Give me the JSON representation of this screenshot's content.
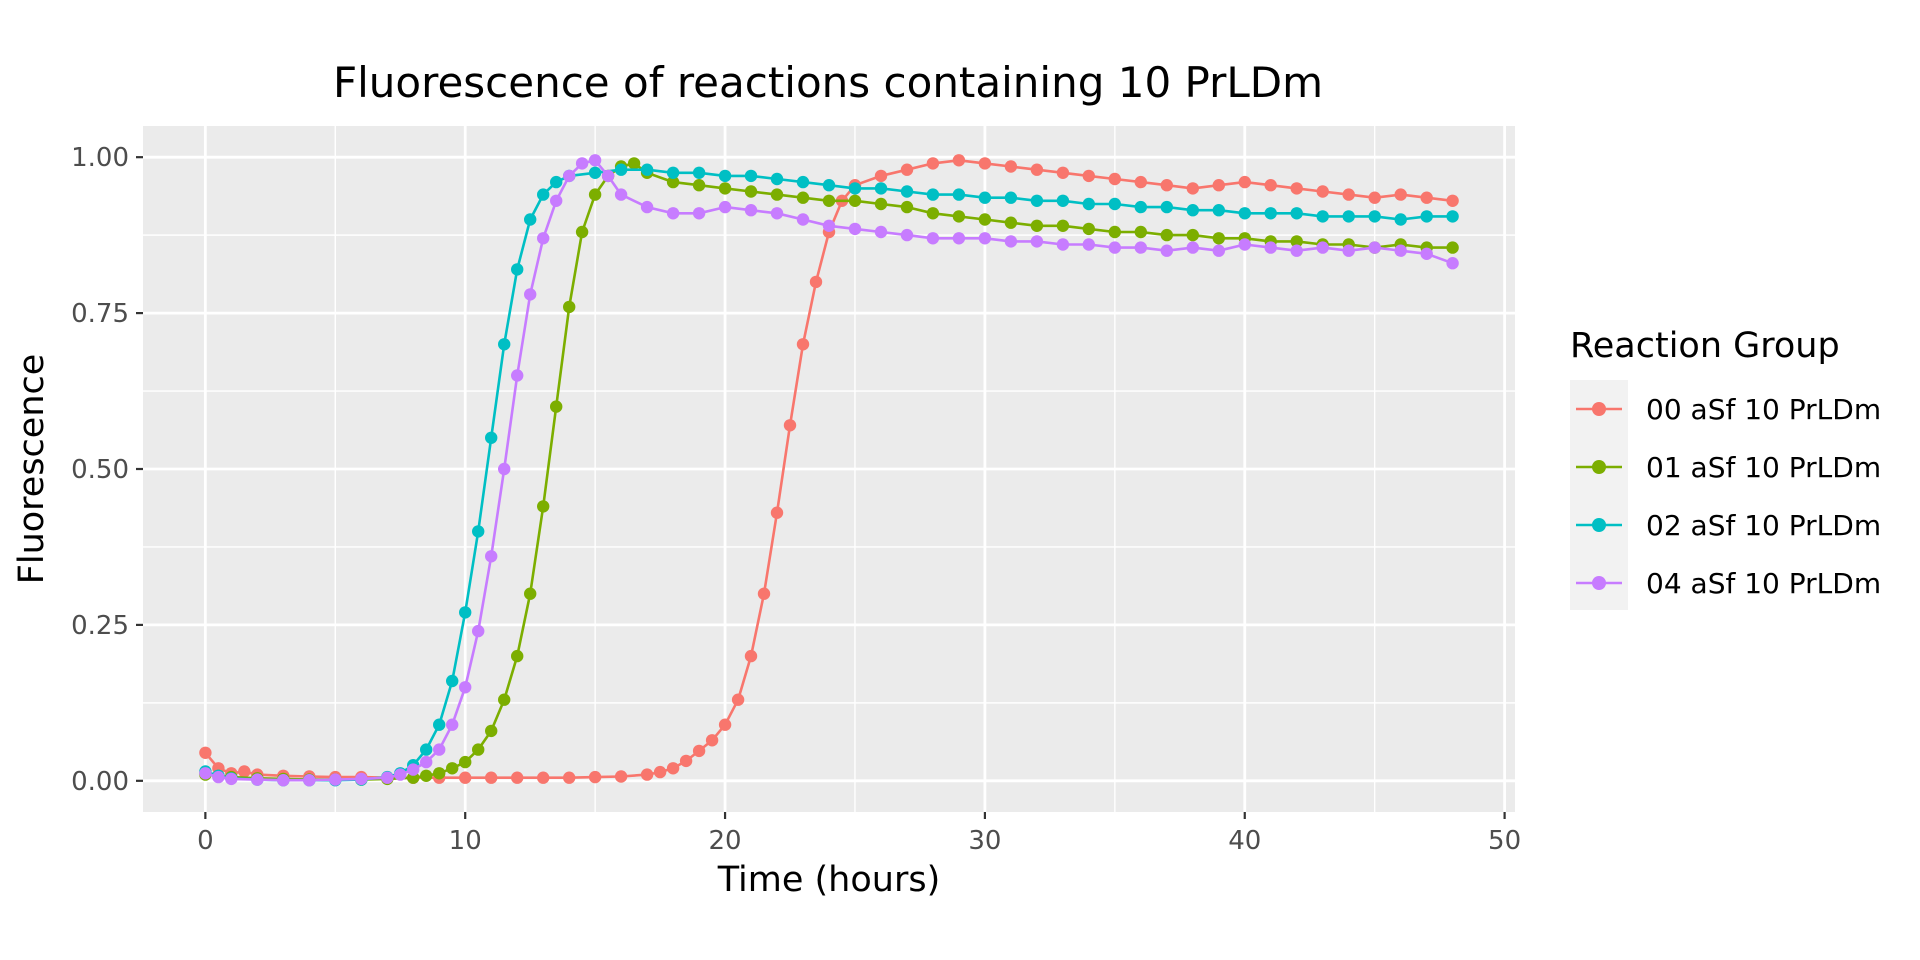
{
  "chart_data": {
    "type": "line",
    "title": "Fluorescence of reactions containing 10 PrLDm",
    "xlabel": "Time (hours)",
    "ylabel": "Fluorescence",
    "xlim": [
      -2.4,
      50.4
    ],
    "ylim": [
      -0.05,
      1.05
    ],
    "x_ticks": [
      0,
      10,
      20,
      30,
      40,
      50
    ],
    "x_tick_labels": [
      "0",
      "10",
      "20",
      "30",
      "40",
      "50"
    ],
    "y_ticks": [
      0,
      0.25,
      0.5,
      0.75,
      1.0
    ],
    "y_tick_labels": [
      "0.00",
      "0.25",
      "0.50",
      "0.75",
      "1.00"
    ],
    "grid": true,
    "markers": true,
    "legend": {
      "title": "Reaction Group",
      "position": "right"
    },
    "panel_background": "#EBEBEB",
    "grid_color": "#FFFFFF",
    "series": [
      {
        "name": "00 aSf 10 PrLDm",
        "color": "#F8766D",
        "x": [
          0,
          0.5,
          1,
          1.5,
          2,
          3,
          4,
          5,
          6,
          7,
          8,
          9,
          10,
          11,
          12,
          13,
          14,
          15,
          16,
          17,
          17.5,
          18,
          18.5,
          19,
          19.5,
          20,
          20.5,
          21,
          21.5,
          22,
          22.5,
          23,
          23.5,
          24,
          24.5,
          25,
          26,
          27,
          28,
          29,
          30,
          31,
          32,
          33,
          34,
          35,
          36,
          37,
          38,
          39,
          40,
          41,
          42,
          43,
          44,
          45,
          46,
          47,
          48
        ],
        "y": [
          0.045,
          0.02,
          0.012,
          0.015,
          0.01,
          0.008,
          0.007,
          0.006,
          0.006,
          0.005,
          0.005,
          0.005,
          0.005,
          0.005,
          0.005,
          0.005,
          0.005,
          0.006,
          0.007,
          0.01,
          0.014,
          0.02,
          0.032,
          0.048,
          0.065,
          0.09,
          0.13,
          0.2,
          0.3,
          0.43,
          0.57,
          0.7,
          0.8,
          0.88,
          0.93,
          0.955,
          0.97,
          0.98,
          0.99,
          0.995,
          0.99,
          0.985,
          0.98,
          0.975,
          0.97,
          0.965,
          0.96,
          0.955,
          0.95,
          0.955,
          0.96,
          0.955,
          0.95,
          0.945,
          0.94,
          0.935,
          0.94,
          0.935,
          0.93
        ]
      },
      {
        "name": "01 aSf 10 PrLDm",
        "color": "#7CAE00",
        "x": [
          0,
          0.5,
          1,
          2,
          3,
          4,
          5,
          6,
          7,
          8,
          8.5,
          9,
          9.5,
          10,
          10.5,
          11,
          11.5,
          12,
          12.5,
          13,
          13.5,
          14,
          14.5,
          15,
          15.5,
          16,
          16.5,
          17,
          18,
          19,
          20,
          21,
          22,
          23,
          24,
          25,
          26,
          27,
          28,
          29,
          30,
          31,
          32,
          33,
          34,
          35,
          36,
          37,
          38,
          39,
          40,
          41,
          42,
          43,
          44,
          45,
          46,
          47,
          48
        ],
        "y": [
          0.01,
          0.008,
          0.006,
          0.004,
          0.003,
          0.002,
          0.002,
          0.002,
          0.003,
          0.005,
          0.008,
          0.012,
          0.02,
          0.03,
          0.05,
          0.08,
          0.13,
          0.2,
          0.3,
          0.44,
          0.6,
          0.76,
          0.88,
          0.94,
          0.97,
          0.985,
          0.99,
          0.975,
          0.96,
          0.955,
          0.95,
          0.945,
          0.94,
          0.935,
          0.93,
          0.93,
          0.925,
          0.92,
          0.91,
          0.905,
          0.9,
          0.895,
          0.89,
          0.89,
          0.885,
          0.88,
          0.88,
          0.875,
          0.875,
          0.87,
          0.87,
          0.865,
          0.865,
          0.86,
          0.86,
          0.855,
          0.86,
          0.855,
          0.855
        ]
      },
      {
        "name": "02 aSf 10 PrLDm",
        "color": "#00BFC4",
        "x": [
          0,
          0.5,
          1,
          2,
          3,
          4,
          5,
          6,
          7,
          7.5,
          8,
          8.5,
          9,
          9.5,
          10,
          10.5,
          11,
          11.5,
          12,
          12.5,
          13,
          13.5,
          14,
          15,
          16,
          17,
          18,
          19,
          20,
          21,
          22,
          23,
          24,
          25,
          26,
          27,
          28,
          29,
          30,
          31,
          32,
          33,
          34,
          35,
          36,
          37,
          38,
          39,
          40,
          41,
          42,
          43,
          44,
          45,
          46,
          47,
          48
        ],
        "y": [
          0.015,
          0.008,
          0.004,
          0.002,
          0.001,
          0.001,
          0.001,
          0.002,
          0.006,
          0.012,
          0.025,
          0.05,
          0.09,
          0.16,
          0.27,
          0.4,
          0.55,
          0.7,
          0.82,
          0.9,
          0.94,
          0.96,
          0.97,
          0.975,
          0.98,
          0.98,
          0.975,
          0.975,
          0.97,
          0.97,
          0.965,
          0.96,
          0.955,
          0.95,
          0.95,
          0.945,
          0.94,
          0.94,
          0.935,
          0.935,
          0.93,
          0.93,
          0.925,
          0.925,
          0.92,
          0.92,
          0.915,
          0.915,
          0.91,
          0.91,
          0.91,
          0.905,
          0.905,
          0.905,
          0.9,
          0.905,
          0.905
        ]
      },
      {
        "name": "04 aSf 10 PrLDm",
        "color": "#C77CFF",
        "x": [
          0,
          0.5,
          1,
          2,
          3,
          4,
          5,
          6,
          7,
          7.5,
          8,
          8.5,
          9,
          9.5,
          10,
          10.5,
          11,
          11.5,
          12,
          12.5,
          13,
          13.5,
          14,
          14.5,
          15,
          15.5,
          16,
          17,
          18,
          19,
          20,
          21,
          22,
          23,
          24,
          25,
          26,
          27,
          28,
          29,
          30,
          31,
          32,
          33,
          34,
          35,
          36,
          37,
          38,
          39,
          40,
          41,
          42,
          43,
          44,
          45,
          46,
          47,
          48
        ],
        "y": [
          0.012,
          0.006,
          0.003,
          0.002,
          0.001,
          0.001,
          0.002,
          0.003,
          0.005,
          0.01,
          0.018,
          0.03,
          0.05,
          0.09,
          0.15,
          0.24,
          0.36,
          0.5,
          0.65,
          0.78,
          0.87,
          0.93,
          0.97,
          0.99,
          0.995,
          0.97,
          0.94,
          0.92,
          0.91,
          0.91,
          0.92,
          0.915,
          0.91,
          0.9,
          0.89,
          0.885,
          0.88,
          0.875,
          0.87,
          0.87,
          0.87,
          0.865,
          0.865,
          0.86,
          0.86,
          0.855,
          0.855,
          0.85,
          0.855,
          0.85,
          0.86,
          0.855,
          0.85,
          0.855,
          0.85,
          0.855,
          0.85,
          0.845,
          0.83
        ]
      }
    ]
  }
}
